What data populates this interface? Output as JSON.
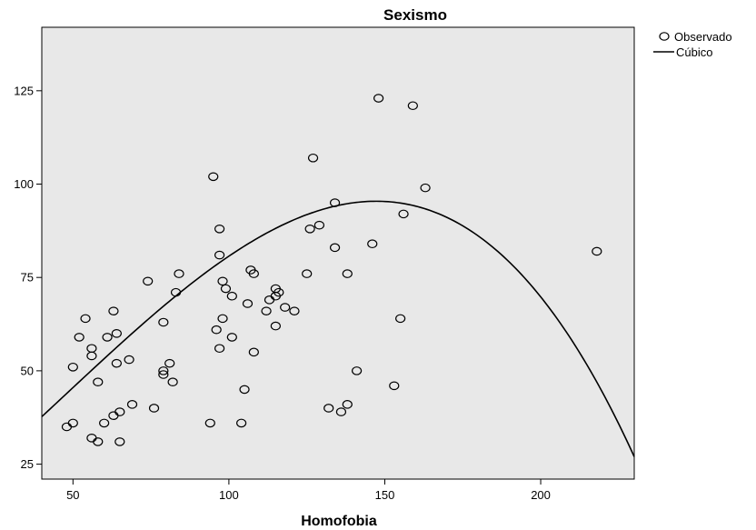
{
  "chart_data": {
    "type": "scatter",
    "title": "Sexismo",
    "xlabel": "Homofobia",
    "ylabel": "",
    "xlim": [
      40,
      230
    ],
    "ylim": [
      21,
      142
    ],
    "xticks": [
      50,
      100,
      150,
      200
    ],
    "yticks": [
      25,
      50,
      75,
      100,
      125
    ],
    "grid": false,
    "legend_position": "top-right",
    "colors": {
      "plot_background": "#e8e8e8",
      "markers": "#000000",
      "curve": "#000000"
    },
    "series": [
      {
        "name": "Observado",
        "kind": "points",
        "marker": "open-circle",
        "points": [
          [
            48,
            35
          ],
          [
            50,
            36
          ],
          [
            50,
            51
          ],
          [
            52,
            59
          ],
          [
            54,
            64
          ],
          [
            56,
            56
          ],
          [
            56,
            54
          ],
          [
            56,
            32
          ],
          [
            58,
            31
          ],
          [
            58,
            47
          ],
          [
            60,
            36
          ],
          [
            61,
            59
          ],
          [
            63,
            38
          ],
          [
            63,
            66
          ],
          [
            64,
            52
          ],
          [
            64,
            60
          ],
          [
            65,
            31
          ],
          [
            65,
            39
          ],
          [
            68,
            53
          ],
          [
            69,
            41
          ],
          [
            74,
            74
          ],
          [
            76,
            40
          ],
          [
            79,
            49
          ],
          [
            79,
            50
          ],
          [
            79,
            63
          ],
          [
            81,
            52
          ],
          [
            82,
            47
          ],
          [
            83,
            71
          ],
          [
            84,
            76
          ],
          [
            94,
            36
          ],
          [
            95,
            102
          ],
          [
            96,
            61
          ],
          [
            97,
            88
          ],
          [
            97,
            81
          ],
          [
            97,
            56
          ],
          [
            98,
            74
          ],
          [
            98,
            64
          ],
          [
            99,
            72
          ],
          [
            101,
            70
          ],
          [
            101,
            59
          ],
          [
            104,
            36
          ],
          [
            105,
            45
          ],
          [
            106,
            68
          ],
          [
            107,
            77
          ],
          [
            108,
            76
          ],
          [
            108,
            55
          ],
          [
            112,
            66
          ],
          [
            113,
            69
          ],
          [
            115,
            70
          ],
          [
            115,
            72
          ],
          [
            115,
            62
          ],
          [
            116,
            71
          ],
          [
            118,
            67
          ],
          [
            121,
            66
          ],
          [
            125,
            76
          ],
          [
            126,
            88
          ],
          [
            127,
            107
          ],
          [
            129,
            89
          ],
          [
            132,
            40
          ],
          [
            134,
            95
          ],
          [
            134,
            83
          ],
          [
            136,
            39
          ],
          [
            138,
            41
          ],
          [
            138,
            76
          ],
          [
            141,
            50
          ],
          [
            146,
            84
          ],
          [
            148,
            123
          ],
          [
            153,
            46
          ],
          [
            155,
            64
          ],
          [
            156,
            92
          ],
          [
            159,
            121
          ],
          [
            163,
            99
          ],
          [
            218,
            82
          ]
        ]
      },
      {
        "name": "Cúbico",
        "kind": "curve",
        "coefficients": [
          9.4,
          0.6,
          0.00375,
          -2.62e-05
        ]
      }
    ]
  }
}
